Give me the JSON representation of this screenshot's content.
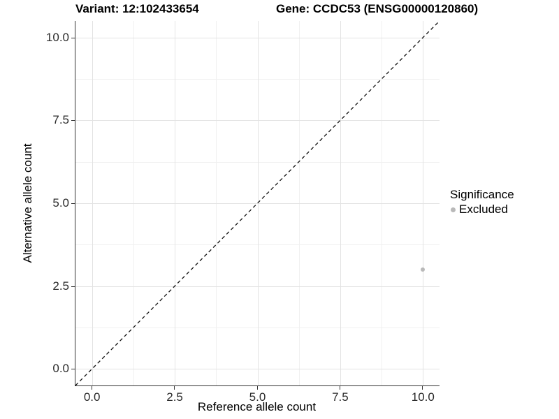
{
  "accent_colors": {
    "excluded_point": "#b9b9b9",
    "grid_major": "#e3e3e3",
    "grid_minor": "#f0f0f0",
    "axis_line": "#333333",
    "reference_line": "#111111"
  },
  "chart_data": {
    "type": "scatter",
    "titles": [
      "Variant: 12:102433654",
      "Gene: CCDC53 (ENSG00000120860)"
    ],
    "xlabel": "Reference allele count",
    "ylabel": "Alternative allele count",
    "xlim": [
      -0.5,
      10.5
    ],
    "ylim": [
      -0.5,
      10.5
    ],
    "x_ticks": {
      "values": [
        0,
        2.5,
        5,
        7.5,
        10
      ],
      "labels": [
        "0.0",
        "2.5",
        "5.0",
        "7.5",
        "10.0"
      ]
    },
    "y_ticks": {
      "values": [
        0,
        2.5,
        5,
        7.5,
        10
      ],
      "labels": [
        "0.0",
        "2.5",
        "5.0",
        "7.5",
        "10.0"
      ]
    },
    "x_minor_ticks": [
      1.25,
      3.75,
      6.25,
      8.75
    ],
    "y_minor_ticks": [
      1.25,
      3.75,
      6.25,
      8.75
    ],
    "grid": true,
    "reference_line": {
      "style": "dashed",
      "from": [
        -0.5,
        -0.5
      ],
      "to": [
        10.5,
        10.5
      ],
      "meaning": "identity line y = x"
    },
    "series": [
      {
        "name": "Excluded",
        "color": "#b9b9b9",
        "points": [
          {
            "x": 10,
            "y": 3
          }
        ]
      }
    ],
    "legend": {
      "title": "Significance",
      "position": "right",
      "entries": [
        {
          "label": "Excluded",
          "color": "#b9b9b9"
        }
      ]
    }
  }
}
